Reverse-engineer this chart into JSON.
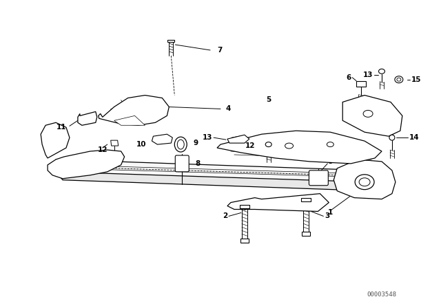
{
  "bg_color": "#ffffff",
  "fig_width": 6.4,
  "fig_height": 4.48,
  "dpi": 100,
  "watermark": "00003548",
  "lw_main": 0.9,
  "lw_thin": 0.5,
  "lw_thick": 1.2,
  "label_fontsize": 7.5,
  "watermark_fontsize": 6.5,
  "text_color": "#000000"
}
